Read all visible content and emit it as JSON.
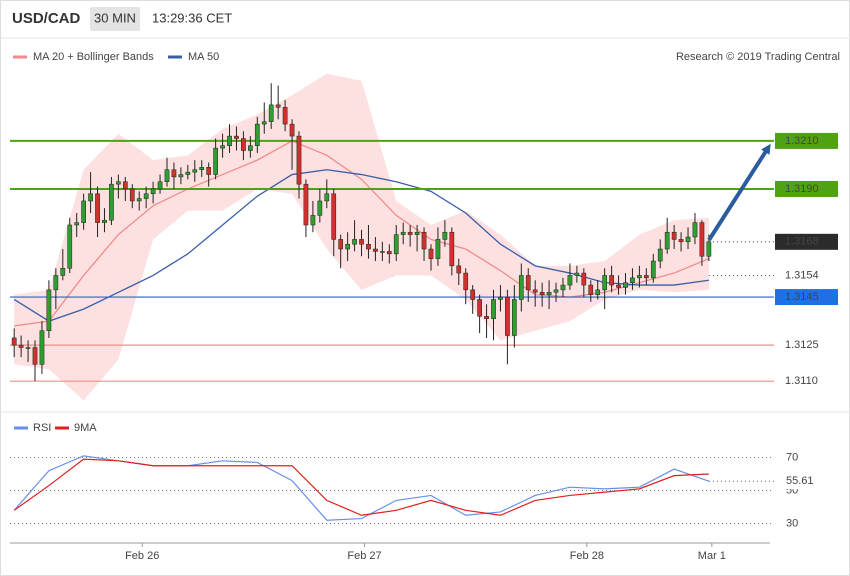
{
  "header": {
    "symbol": "USD/CAD",
    "interval": "30 MIN",
    "time": "13:29:36 CET"
  },
  "chart_data": [
    {
      "type": "candlestick",
      "legend": [
        {
          "name": "MA 20 + Bollinger Bands",
          "color": "#f28c8c"
        },
        {
          "name": "MA 50",
          "color": "#3a5ea8"
        }
      ],
      "credit": "Research © 2019 Trading Central",
      "xlim": [
        -0.6,
        108.8
      ],
      "ylim": [
        1.3098,
        1.3252
      ],
      "xticks": [
        {
          "value": 18,
          "label": "Feb 26"
        },
        {
          "value": 50,
          "label": "Feb 27"
        },
        {
          "value": 82,
          "label": "Feb 28"
        },
        {
          "value": 100,
          "label": "Mar 1"
        }
      ],
      "up_color": "#2e9e2e",
      "down_color": "#d0312d",
      "open": [
        1.3128,
        1.3125,
        1.3124,
        1.3124,
        1.3117,
        1.3131,
        1.3148,
        1.3154,
        1.3157,
        1.3175,
        1.3176,
        1.3185,
        1.3188,
        1.3176,
        1.3177,
        1.3192,
        1.3193,
        1.319,
        1.3185,
        1.3186,
        1.3188,
        1.319,
        1.3193,
        1.3198,
        1.3195,
        1.3196,
        1.3197,
        1.3198,
        1.3199,
        1.3196,
        1.3207,
        1.3208,
        1.3212,
        1.3211,
        1.3206,
        1.3208,
        1.3217,
        1.3218,
        1.3225,
        1.3224,
        1.3217,
        1.3212,
        1.3192,
        1.3175,
        1.3179,
        1.3185,
        1.3188,
        1.3169,
        1.3165,
        1.3167,
        1.3169,
        1.3167,
        1.3165,
        1.3164,
        1.3164,
        1.3163,
        1.3171,
        1.3172,
        1.3171,
        1.3172,
        1.3165,
        1.3161,
        1.3169,
        1.3172,
        1.3158,
        1.3155,
        1.3148,
        1.3144,
        1.3137,
        1.3136,
        1.3144,
        1.3145,
        1.3129,
        1.3144,
        1.3154,
        1.3148,
        1.3147,
        1.3146,
        1.3147,
        1.3148,
        1.315,
        1.3154,
        1.3155,
        1.315,
        1.3146,
        1.3148,
        1.3154,
        1.315,
        1.3149,
        1.3151,
        1.3153,
        1.3154,
        1.3153,
        1.316,
        1.3165,
        1.3172,
        1.3169,
        1.3168,
        1.317,
        1.3176,
        1.3162
      ],
      "high": [
        1.3132,
        1.3129,
        1.3127,
        1.3127,
        1.3135,
        1.3152,
        1.3157,
        1.3165,
        1.3178,
        1.318,
        1.3188,
        1.3197,
        1.3191,
        1.3182,
        1.3195,
        1.3196,
        1.3195,
        1.3192,
        1.3189,
        1.3191,
        1.3193,
        1.3196,
        1.3203,
        1.3201,
        1.3199,
        1.32,
        1.3202,
        1.3202,
        1.3201,
        1.3211,
        1.3213,
        1.3217,
        1.3216,
        1.3214,
        1.3212,
        1.322,
        1.3226,
        1.3234,
        1.3233,
        1.3227,
        1.3219,
        1.3214,
        1.3194,
        1.3185,
        1.319,
        1.3194,
        1.319,
        1.3171,
        1.3172,
        1.3177,
        1.3173,
        1.3175,
        1.317,
        1.3168,
        1.3167,
        1.3175,
        1.3176,
        1.3175,
        1.3175,
        1.3174,
        1.3167,
        1.3174,
        1.3177,
        1.3174,
        1.3161,
        1.3157,
        1.315,
        1.3146,
        1.3142,
        1.3148,
        1.315,
        1.3148,
        1.315,
        1.3159,
        1.3157,
        1.3152,
        1.3151,
        1.3152,
        1.3151,
        1.3153,
        1.3159,
        1.3158,
        1.3157,
        1.3152,
        1.3152,
        1.3157,
        1.3158,
        1.3154,
        1.3155,
        1.3157,
        1.3158,
        1.3157,
        1.3163,
        1.3169,
        1.3178,
        1.3175,
        1.3172,
        1.3174,
        1.318,
        1.3177,
        1.3171
      ],
      "low": [
        1.312,
        1.312,
        1.3118,
        1.311,
        1.3113,
        1.3128,
        1.314,
        1.3152,
        1.3155,
        1.317,
        1.3173,
        1.318,
        1.317,
        1.3172,
        1.3175,
        1.3186,
        1.3185,
        1.3182,
        1.3181,
        1.3182,
        1.3184,
        1.3188,
        1.3191,
        1.319,
        1.3192,
        1.3194,
        1.3193,
        1.3195,
        1.3191,
        1.3194,
        1.3203,
        1.3205,
        1.3206,
        1.3202,
        1.3203,
        1.3205,
        1.3213,
        1.3215,
        1.3219,
        1.3214,
        1.3198,
        1.3186,
        1.317,
        1.3172,
        1.3176,
        1.3182,
        1.3162,
        1.3157,
        1.316,
        1.3164,
        1.3162,
        1.3161,
        1.316,
        1.316,
        1.3159,
        1.316,
        1.3167,
        1.3166,
        1.3164,
        1.316,
        1.3156,
        1.3158,
        1.3166,
        1.3154,
        1.315,
        1.3142,
        1.3138,
        1.313,
        1.3128,
        1.3127,
        1.3139,
        1.3117,
        1.3124,
        1.3139,
        1.3143,
        1.3141,
        1.3141,
        1.314,
        1.3143,
        1.3145,
        1.3148,
        1.3151,
        1.3145,
        1.3143,
        1.3144,
        1.314,
        1.3147,
        1.3146,
        1.3146,
        1.3148,
        1.3149,
        1.315,
        1.3151,
        1.3157,
        1.3163,
        1.3165,
        1.3164,
        1.3165,
        1.3167,
        1.3158,
        1.316
      ],
      "close": [
        1.3125,
        1.3124,
        1.3124,
        1.3117,
        1.3131,
        1.3148,
        1.3154,
        1.3157,
        1.3175,
        1.3176,
        1.3185,
        1.3188,
        1.3176,
        1.3177,
        1.3192,
        1.3193,
        1.319,
        1.3185,
        1.3186,
        1.3188,
        1.319,
        1.3193,
        1.3198,
        1.3195,
        1.3196,
        1.3197,
        1.3198,
        1.3199,
        1.3196,
        1.3207,
        1.3208,
        1.3212,
        1.3211,
        1.3206,
        1.3208,
        1.3217,
        1.3218,
        1.3225,
        1.3224,
        1.3217,
        1.3212,
        1.3192,
        1.3175,
        1.3179,
        1.3185,
        1.3188,
        1.3169,
        1.3165,
        1.3167,
        1.3169,
        1.3167,
        1.3165,
        1.3164,
        1.3164,
        1.3163,
        1.3171,
        1.3172,
        1.3171,
        1.3172,
        1.3165,
        1.3161,
        1.3169,
        1.3172,
        1.3158,
        1.3155,
        1.3148,
        1.3144,
        1.3137,
        1.3136,
        1.3144,
        1.3145,
        1.3129,
        1.3144,
        1.3154,
        1.3148,
        1.3147,
        1.3146,
        1.3147,
        1.3148,
        1.315,
        1.3154,
        1.3155,
        1.315,
        1.3146,
        1.3148,
        1.3154,
        1.315,
        1.3149,
        1.3151,
        1.3153,
        1.3154,
        1.3153,
        1.316,
        1.3165,
        1.3172,
        1.3169,
        1.3168,
        1.317,
        1.3176,
        1.3162,
        1.3168
      ],
      "indicator_index": [
        0,
        5,
        10,
        15,
        20,
        25,
        30,
        35,
        40,
        45,
        50,
        55,
        60,
        65,
        70,
        75,
        80,
        85,
        90,
        95,
        100
      ],
      "bb_upper": [
        1.3146,
        1.3148,
        1.3198,
        1.3213,
        1.3202,
        1.3204,
        1.3215,
        1.3221,
        1.3229,
        1.3238,
        1.3235,
        1.3185,
        1.3175,
        1.3181,
        1.3171,
        1.3158,
        1.3158,
        1.316,
        1.3171,
        1.3177,
        1.3178
      ],
      "bb_lower": [
        1.3117,
        1.3115,
        1.3102,
        1.3119,
        1.3169,
        1.3181,
        1.3181,
        1.319,
        1.3188,
        1.3165,
        1.3148,
        1.3154,
        1.3154,
        1.3144,
        1.3127,
        1.3131,
        1.3135,
        1.3144,
        1.3148,
        1.3147,
        1.3148
      ],
      "ma20": [
        1.3133,
        1.3135,
        1.3154,
        1.3171,
        1.3183,
        1.319,
        1.3196,
        1.3202,
        1.321,
        1.3204,
        1.3194,
        1.3179,
        1.3169,
        1.3165,
        1.3156,
        1.3146,
        1.3145,
        1.3147,
        1.3151,
        1.3155,
        1.3161
      ],
      "ma50": [
        1.3144,
        1.3135,
        1.314,
        1.3147,
        1.3154,
        1.3163,
        1.3175,
        1.3187,
        1.3196,
        1.3198,
        1.3196,
        1.3193,
        1.3189,
        1.318,
        1.3167,
        1.3158,
        1.3155,
        1.3151,
        1.315,
        1.315,
        1.3152
      ],
      "bb_fill": "#fde0e0",
      "levels": [
        {
          "value": 1.321,
          "label": "1.3210",
          "line_color": "#4fa312",
          "line_style": "solid",
          "box_color": "#4fa312",
          "text_color": "#ffffff"
        },
        {
          "value": 1.319,
          "label": "1.3190",
          "line_color": "#4fa312",
          "line_style": "solid",
          "box_color": "#4fa312",
          "text_color": "#ffffff"
        },
        {
          "value": 1.3168,
          "label": "1.3168",
          "line_color": "#333333",
          "line_style": "dotted",
          "box_color": "#2b2b2b",
          "text_color": "#ffffff"
        },
        {
          "value": 1.3154,
          "label": "1.3154",
          "line_color": "#555555",
          "line_style": "dotted",
          "box_color": "#ffffff",
          "text_color": "#2a5db0"
        },
        {
          "value": 1.3145,
          "label": "1.3145",
          "line_color": "#2a5fd0",
          "line_style": "solid",
          "box_color": "#1f6fe5",
          "text_color": "#ffffff"
        },
        {
          "value": 1.3125,
          "label": "1.3125",
          "line_color": "#f08c8c",
          "line_style": "solid",
          "box_color": "#ffffff",
          "text_color": "#e01010"
        },
        {
          "value": 1.311,
          "label": "1.3110",
          "line_color": "#f08c8c",
          "line_style": "solid",
          "box_color": "#ffffff",
          "text_color": "#e01010"
        }
      ]
    },
    {
      "type": "line",
      "xlim": [
        -0.6,
        108.8
      ],
      "ylim": [
        20,
        89.7
      ],
      "yticks": [
        30,
        50,
        70
      ],
      "x": [
        0,
        5,
        10,
        15,
        20,
        25,
        30,
        35,
        40,
        45,
        50,
        55,
        60,
        65,
        70,
        75,
        80,
        85,
        90,
        95,
        100
      ],
      "series": [
        {
          "name": "RSI",
          "color": "#6a8fe6",
          "values": [
            38,
            62,
            71,
            68,
            65,
            65,
            68,
            67,
            56,
            32,
            33,
            44,
            47,
            35,
            37,
            47,
            52,
            51,
            52,
            63,
            55.61
          ]
        },
        {
          "name": "9MA",
          "color": "#e02020",
          "values": [
            38,
            53,
            69,
            68,
            65,
            65,
            65,
            65,
            65,
            44,
            35,
            38,
            44,
            38,
            35,
            44,
            47,
            49,
            51,
            59,
            60
          ]
        }
      ]
    }
  ]
}
